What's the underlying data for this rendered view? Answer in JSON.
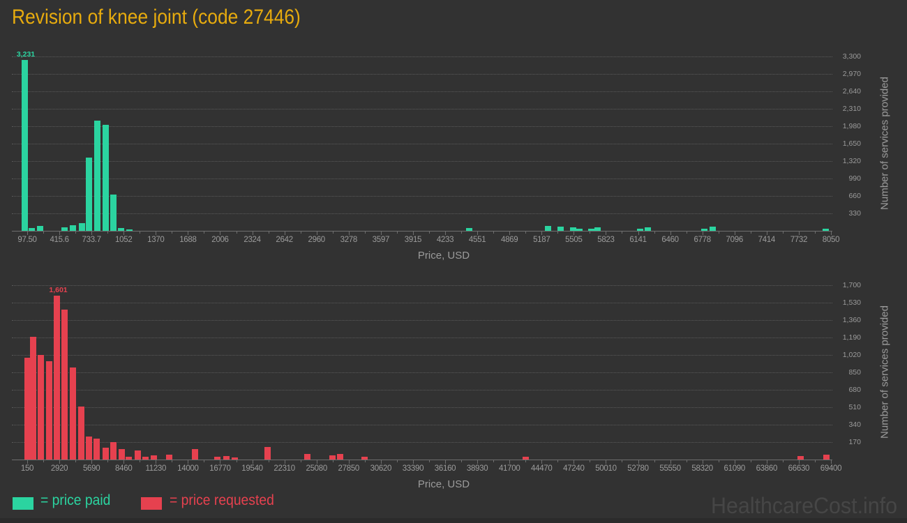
{
  "title": "Revision of knee joint (code 27446)",
  "watermark": "HealthcareCost.info",
  "legend": {
    "paid": {
      "label": "= price paid",
      "color": "#2bd4a0"
    },
    "requested": {
      "label": "= price requested",
      "color": "#e6414f"
    }
  },
  "chart_data": [
    {
      "type": "bar",
      "series_name": "price paid",
      "color": "#2bd4a0",
      "xlabel": "Price, USD",
      "ylabel": "Number of services provided",
      "x_first": 97.5,
      "x_last": 8050,
      "x_ticks": [
        "97.50",
        "415.6",
        "733.7",
        "1052",
        "1370",
        "1688",
        "2006",
        "2324",
        "2642",
        "2960",
        "3278",
        "3597",
        "3915",
        "4233",
        "4551",
        "4869",
        "5187",
        "5505",
        "5823",
        "6141",
        "6460",
        "6778",
        "7096",
        "7414",
        "7732",
        "8050"
      ],
      "y_ticks": [
        "330",
        "660",
        "990",
        "1,320",
        "1,650",
        "1,980",
        "2,310",
        "2,640",
        "2,970",
        "3,300"
      ],
      "y_grid_max": 3300,
      "grid": true,
      "legend_position": "bottom",
      "max_label": {
        "text": "3,231",
        "price": 70
      },
      "bars": [
        [
          70,
          3231
        ],
        [
          139,
          50
        ],
        [
          222,
          95
        ],
        [
          470,
          65
        ],
        [
          553,
          110
        ],
        [
          636,
          140
        ],
        [
          708,
          1385
        ],
        [
          788,
          2090
        ],
        [
          871,
          2010
        ],
        [
          950,
          690
        ],
        [
          1029,
          55
        ],
        [
          1112,
          30
        ],
        [
          4473,
          50
        ],
        [
          5253,
          90
        ],
        [
          5374,
          75
        ],
        [
          5501,
          65
        ],
        [
          5564,
          45
        ],
        [
          5678,
          45
        ],
        [
          5740,
          65
        ],
        [
          6161,
          45
        ],
        [
          6237,
          70
        ],
        [
          6800,
          35
        ],
        [
          6879,
          85
        ],
        [
          7998,
          45
        ]
      ]
    },
    {
      "type": "bar",
      "series_name": "price requested",
      "color": "#e6414f",
      "xlabel": "Price, USD",
      "ylabel": "Number of services provided",
      "x_first": 150,
      "x_last": 69400,
      "x_ticks": [
        "150",
        "2920",
        "5690",
        "8460",
        "11230",
        "14000",
        "16770",
        "19540",
        "22310",
        "25080",
        "27850",
        "30620",
        "33390",
        "36160",
        "38930",
        "41700",
        "44470",
        "47240",
        "50010",
        "52780",
        "55550",
        "58320",
        "61090",
        "63860",
        "66630",
        "69400"
      ],
      "y_ticks": [
        "170",
        "340",
        "510",
        "680",
        "850",
        "1,020",
        "1,190",
        "1,360",
        "1,530",
        "1,700"
      ],
      "y_grid_max": 1700,
      "grid": true,
      "legend_position": "bottom",
      "max_label": {
        "text": "1,601",
        "price": 2705
      },
      "bars": [
        [
          150,
          990
        ],
        [
          660,
          1200
        ],
        [
          1320,
          1020
        ],
        [
          2045,
          960
        ],
        [
          2705,
          1601
        ],
        [
          3365,
          1465
        ],
        [
          4090,
          900
        ],
        [
          4780,
          520
        ],
        [
          5470,
          225
        ],
        [
          6160,
          205
        ],
        [
          6885,
          115
        ],
        [
          7575,
          170
        ],
        [
          8295,
          105
        ],
        [
          8895,
          25
        ],
        [
          9650,
          90
        ],
        [
          10310,
          27
        ],
        [
          11060,
          40
        ],
        [
          12385,
          45
        ],
        [
          14610,
          100
        ],
        [
          16560,
          25
        ],
        [
          17285,
          35
        ],
        [
          18005,
          20
        ],
        [
          20830,
          120
        ],
        [
          24285,
          55
        ],
        [
          26450,
          40
        ],
        [
          27110,
          55
        ],
        [
          29215,
          25
        ],
        [
          43100,
          30
        ],
        [
          66815,
          35
        ],
        [
          68980,
          45
        ]
      ]
    }
  ]
}
